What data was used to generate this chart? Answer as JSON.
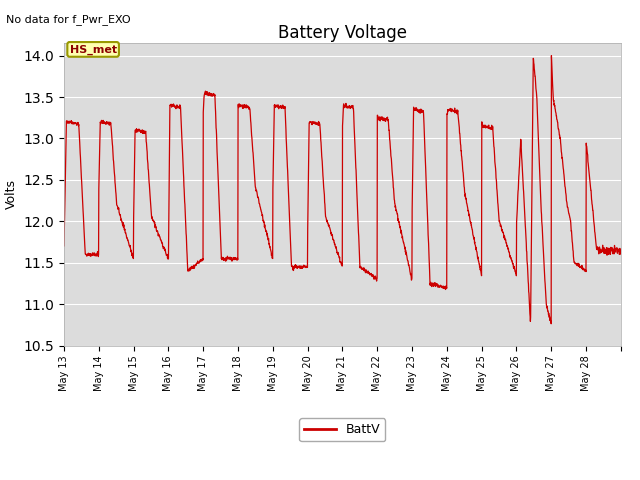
{
  "title": "Battery Voltage",
  "ylabel": "Volts",
  "no_data_text": "No data for f_Pwr_EXO",
  "legend_label": "BattV",
  "line_color": "#cc0000",
  "background_color": "#dcdcdc",
  "ylim": [
    10.5,
    14.15
  ],
  "yticks": [
    10.5,
    11.0,
    11.5,
    12.0,
    12.5,
    13.0,
    13.5,
    14.0
  ],
  "hs_met_label": "HS_met",
  "x_tick_labels": [
    "May 13",
    "May 14",
    "May 15",
    "May 16",
    "May 17",
    "May 18",
    "May 19",
    "May 20",
    "May 21",
    "May 22",
    "May 23",
    "May 24",
    "May 25",
    "May 26",
    "May 27",
    "May 28"
  ]
}
